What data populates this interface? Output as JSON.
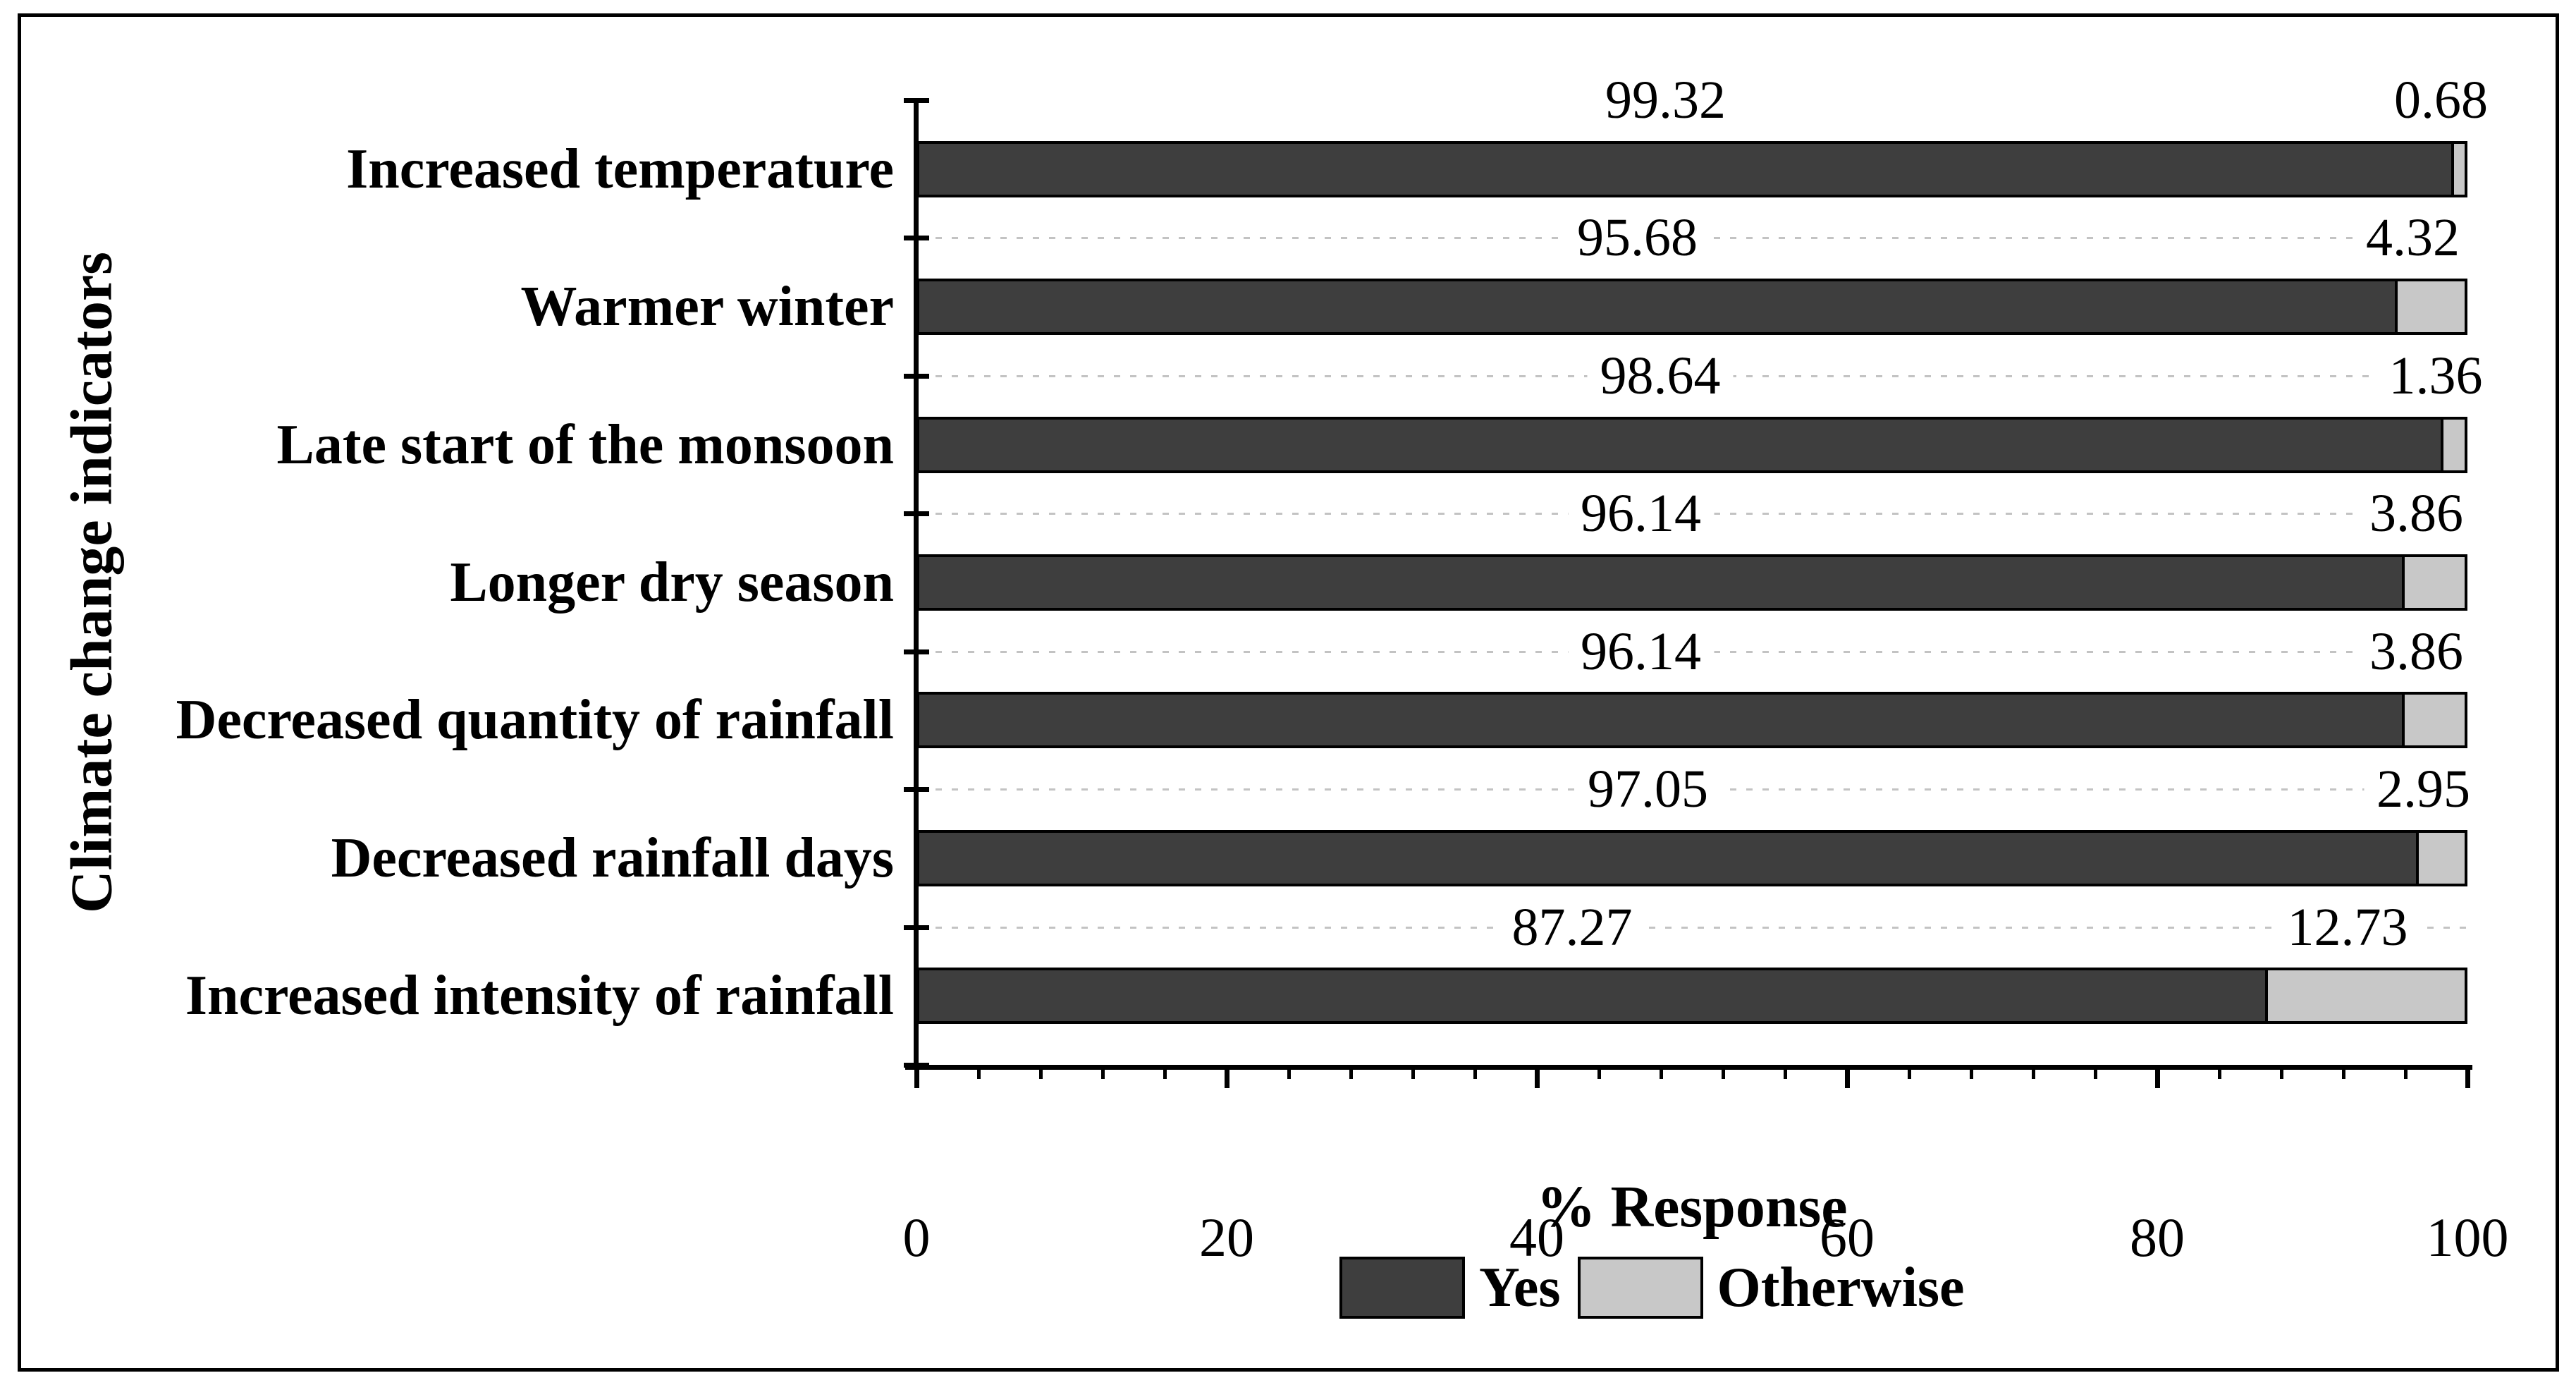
{
  "chart_data": {
    "type": "bar",
    "orientation": "horizontal",
    "stacked": true,
    "title": "",
    "xlabel": "% Response",
    "ylabel": "Climate change indicators",
    "categories": [
      "Increased temperature",
      "Warmer winter",
      "Late start of the monsoon",
      "Longer dry season",
      "Decreased quantity of rainfall",
      "Decreased rainfall days",
      "Increased intensity of rainfall"
    ],
    "series": [
      {
        "name": "Yes",
        "color": "#3E3E3E",
        "values": [
          99.32,
          95.68,
          98.64,
          96.14,
          96.14,
          97.05,
          87.27
        ],
        "labels": [
          "99.32",
          "95.68",
          "98.64",
          "96.14",
          "96.14",
          "97.05",
          "87.27"
        ]
      },
      {
        "name": "Otherwise",
        "color": "#C8C8C8",
        "values": [
          0.68,
          4.32,
          1.36,
          3.86,
          3.86,
          2.95,
          12.73
        ],
        "labels": [
          "0.68",
          "4.32",
          "1.36",
          "3.86",
          "3.86",
          "2.95",
          "12.73"
        ]
      }
    ],
    "xlim": [
      0,
      100
    ],
    "xticks": [
      0,
      20,
      40,
      60,
      80,
      100
    ],
    "xtick_labels": [
      "0",
      "20",
      "40",
      "60",
      "80",
      "100"
    ],
    "minor_tick_step": 4,
    "grid": "dashed horizontal lines at category boundaries",
    "grid_color": "#C3C3C3",
    "legend_position": "bottom",
    "value_labels_shown": true
  }
}
